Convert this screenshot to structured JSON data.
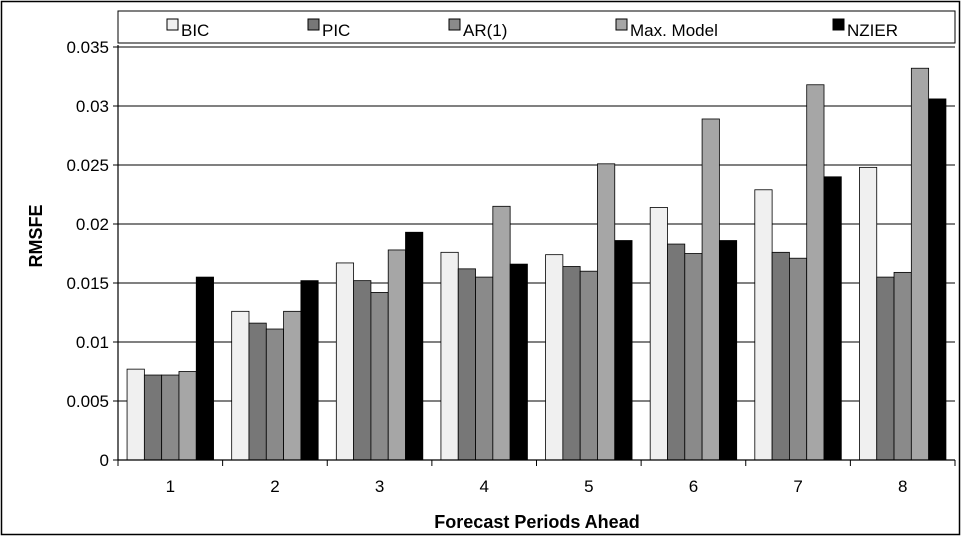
{
  "chart_data": {
    "type": "bar",
    "title": "",
    "xlabel": "Forecast Periods Ahead",
    "ylabel": "RMSFE",
    "ylim": [
      0,
      0.035
    ],
    "yticks": [
      "0",
      "0.005",
      "0.01",
      "0.015",
      "0.02",
      "0.025",
      "0.03",
      "0.035"
    ],
    "ytick_values": [
      0,
      0.005,
      0.01,
      0.015,
      0.02,
      0.025,
      0.03,
      0.035
    ],
    "categories": [
      "1",
      "2",
      "3",
      "4",
      "5",
      "6",
      "7",
      "8"
    ],
    "grid": "horizontal",
    "legend_position": "top",
    "series": [
      {
        "name": "BIC",
        "color": "#f0f0f0",
        "values": [
          0.0077,
          0.0126,
          0.0167,
          0.0176,
          0.0174,
          0.0214,
          0.0229,
          0.0248
        ]
      },
      {
        "name": "PIC",
        "color": "#777777",
        "values": [
          0.0072,
          0.0116,
          0.0152,
          0.0162,
          0.0164,
          0.0183,
          0.0176,
          0.0155
        ]
      },
      {
        "name": "AR(1)",
        "color": "#8a8a8a",
        "values": [
          0.0072,
          0.0111,
          0.0142,
          0.0155,
          0.016,
          0.0175,
          0.0171,
          0.0159
        ]
      },
      {
        "name": "Max. Model",
        "color": "#a6a6a6",
        "values": [
          0.0075,
          0.0126,
          0.0178,
          0.0215,
          0.0251,
          0.0289,
          0.0318,
          0.0332
        ]
      },
      {
        "name": "NZIER",
        "color": "#000000",
        "values": [
          0.0155,
          0.0152,
          0.0193,
          0.0166,
          0.0186,
          0.0186,
          0.024,
          0.0306
        ]
      }
    ]
  }
}
